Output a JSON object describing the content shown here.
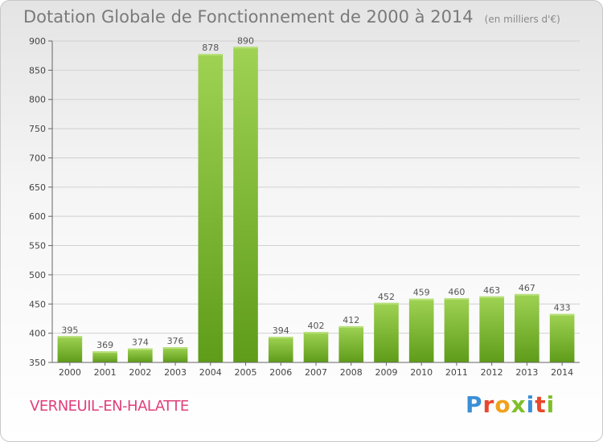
{
  "header": {
    "title": "Dotation Globale de Fonctionnement de 2000 à 2014",
    "unit": "(en milliers d'€)"
  },
  "footer": {
    "commune": "VERNEUIL-EN-HALATTE",
    "logo": "Proxiti"
  },
  "colors": {
    "bar_light": "#9fd253",
    "bar_dark": "#5e9c19",
    "commune": "#e0407a"
  },
  "chart_data": {
    "type": "bar",
    "title": "Dotation Globale de Fonctionnement de 2000 à 2014",
    "xlabel": "",
    "ylabel": "",
    "categories": [
      "2000",
      "2001",
      "2002",
      "2003",
      "2004",
      "2005",
      "2006",
      "2007",
      "2008",
      "2009",
      "2010",
      "2011",
      "2012",
      "2013",
      "2014"
    ],
    "values": [
      395,
      369,
      374,
      376,
      878,
      890,
      394,
      402,
      412,
      452,
      459,
      460,
      463,
      467,
      433
    ],
    "ylim": [
      350,
      900
    ],
    "yticks": [
      350,
      400,
      450,
      500,
      550,
      600,
      650,
      700,
      750,
      800,
      850,
      900
    ],
    "grid": true
  }
}
